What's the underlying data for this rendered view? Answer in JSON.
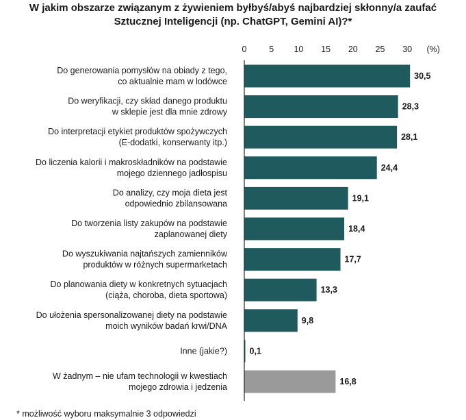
{
  "title_lines": [
    "W jakim obszarze związanym z żywieniem byłbyś/abyś najbardziej skłonny/a zaufać",
    "Sztucznej Inteligencji (np. ChatGPT, Gemini AI)?*"
  ],
  "footnote": "* możliwość wyboru maksymalnie 3 odpowiedzi",
  "colors": {
    "bar": "#1e5a5e",
    "bar_neutral": "#9a9a9a",
    "axis": "#2a2a2a"
  },
  "chart_data": {
    "type": "bar",
    "orientation": "horizontal",
    "title": "W jakim obszarze związanym z żywieniem byłbyś/abyś najbardziej skłonny/a zaufać Sztucznej Inteligencji (np. ChatGPT, Gemini AI)?*",
    "xlabel": "",
    "ylabel": "",
    "unit_label": "(%)",
    "xlim": [
      0,
      30
    ],
    "x_ticks": [
      "0",
      "5",
      "10",
      "15",
      "20",
      "25",
      "30"
    ],
    "grid": false,
    "categories": [
      [
        "Do generowania pomysłów na obiady z tego,",
        "co aktualnie mam w lodówce"
      ],
      [
        "Do weryfikacji, czy skład danego produktu",
        "w sklepie jest dla mnie zdrowy"
      ],
      [
        "Do interpretacji etykiet produktów spożywczych",
        "(E-dodatki, konserwanty itp.)"
      ],
      [
        "Do liczenia kalorii i makroskładników na podstawie",
        "mojego dziennego jadłospisu"
      ],
      [
        "Do analizy, czy moja dieta jest",
        "odpowiednio zbilansowana"
      ],
      [
        "Do tworzenia listy zakupów na podstawie",
        "zaplanowanej diety"
      ],
      [
        "Do wyszukiwania najtańszych zamienników",
        "produktów w różnych supermarketach"
      ],
      [
        "Do planowania diety w konkretnych sytuacjach",
        "(ciąża, choroba, dieta sportowa)"
      ],
      [
        "Do ułożenia spersonalizowanej diety na podstawie",
        "moich wyników badań krwi/DNA"
      ],
      [
        "Inne (jakie?)"
      ],
      [
        "W żadnym – nie ufam technologii w kwestiach",
        "mojego zdrowia i jedzenia"
      ]
    ],
    "values": [
      30.5,
      28.3,
      28.1,
      24.4,
      19.1,
      18.4,
      17.7,
      13.3,
      9.8,
      0.1,
      16.8
    ],
    "value_labels": [
      "30,5",
      "28,3",
      "28,1",
      "24,4",
      "19,1",
      "18,4",
      "17,7",
      "13,3",
      "9,8",
      "0,1",
      "16,8"
    ],
    "neutral_index": 10
  }
}
